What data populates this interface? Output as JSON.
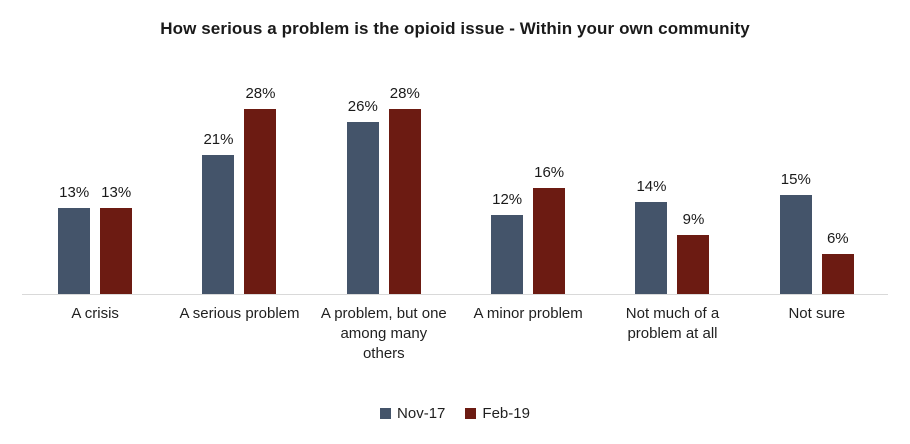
{
  "chart_data": {
    "type": "bar",
    "title": "How serious a problem is the opioid issue - Within your own community",
    "categories": [
      "A crisis",
      "A serious problem",
      "A problem, but one among many others",
      "A minor problem",
      "Not much of a problem at all",
      "Not sure"
    ],
    "series": [
      {
        "name": "Nov-17",
        "color": "#44546A",
        "values": [
          13,
          21,
          26,
          12,
          14,
          15
        ]
      },
      {
        "name": "Feb-19",
        "color": "#6C1B12",
        "values": [
          13,
          28,
          28,
          16,
          9,
          6
        ]
      }
    ],
    "value_suffix": "%",
    "data_labels": true,
    "legend_position": "bottom",
    "grid": false,
    "y_axis_visible": false,
    "x_axis_line_color": "#D9D9D9",
    "ylim": [
      0,
      30
    ]
  }
}
